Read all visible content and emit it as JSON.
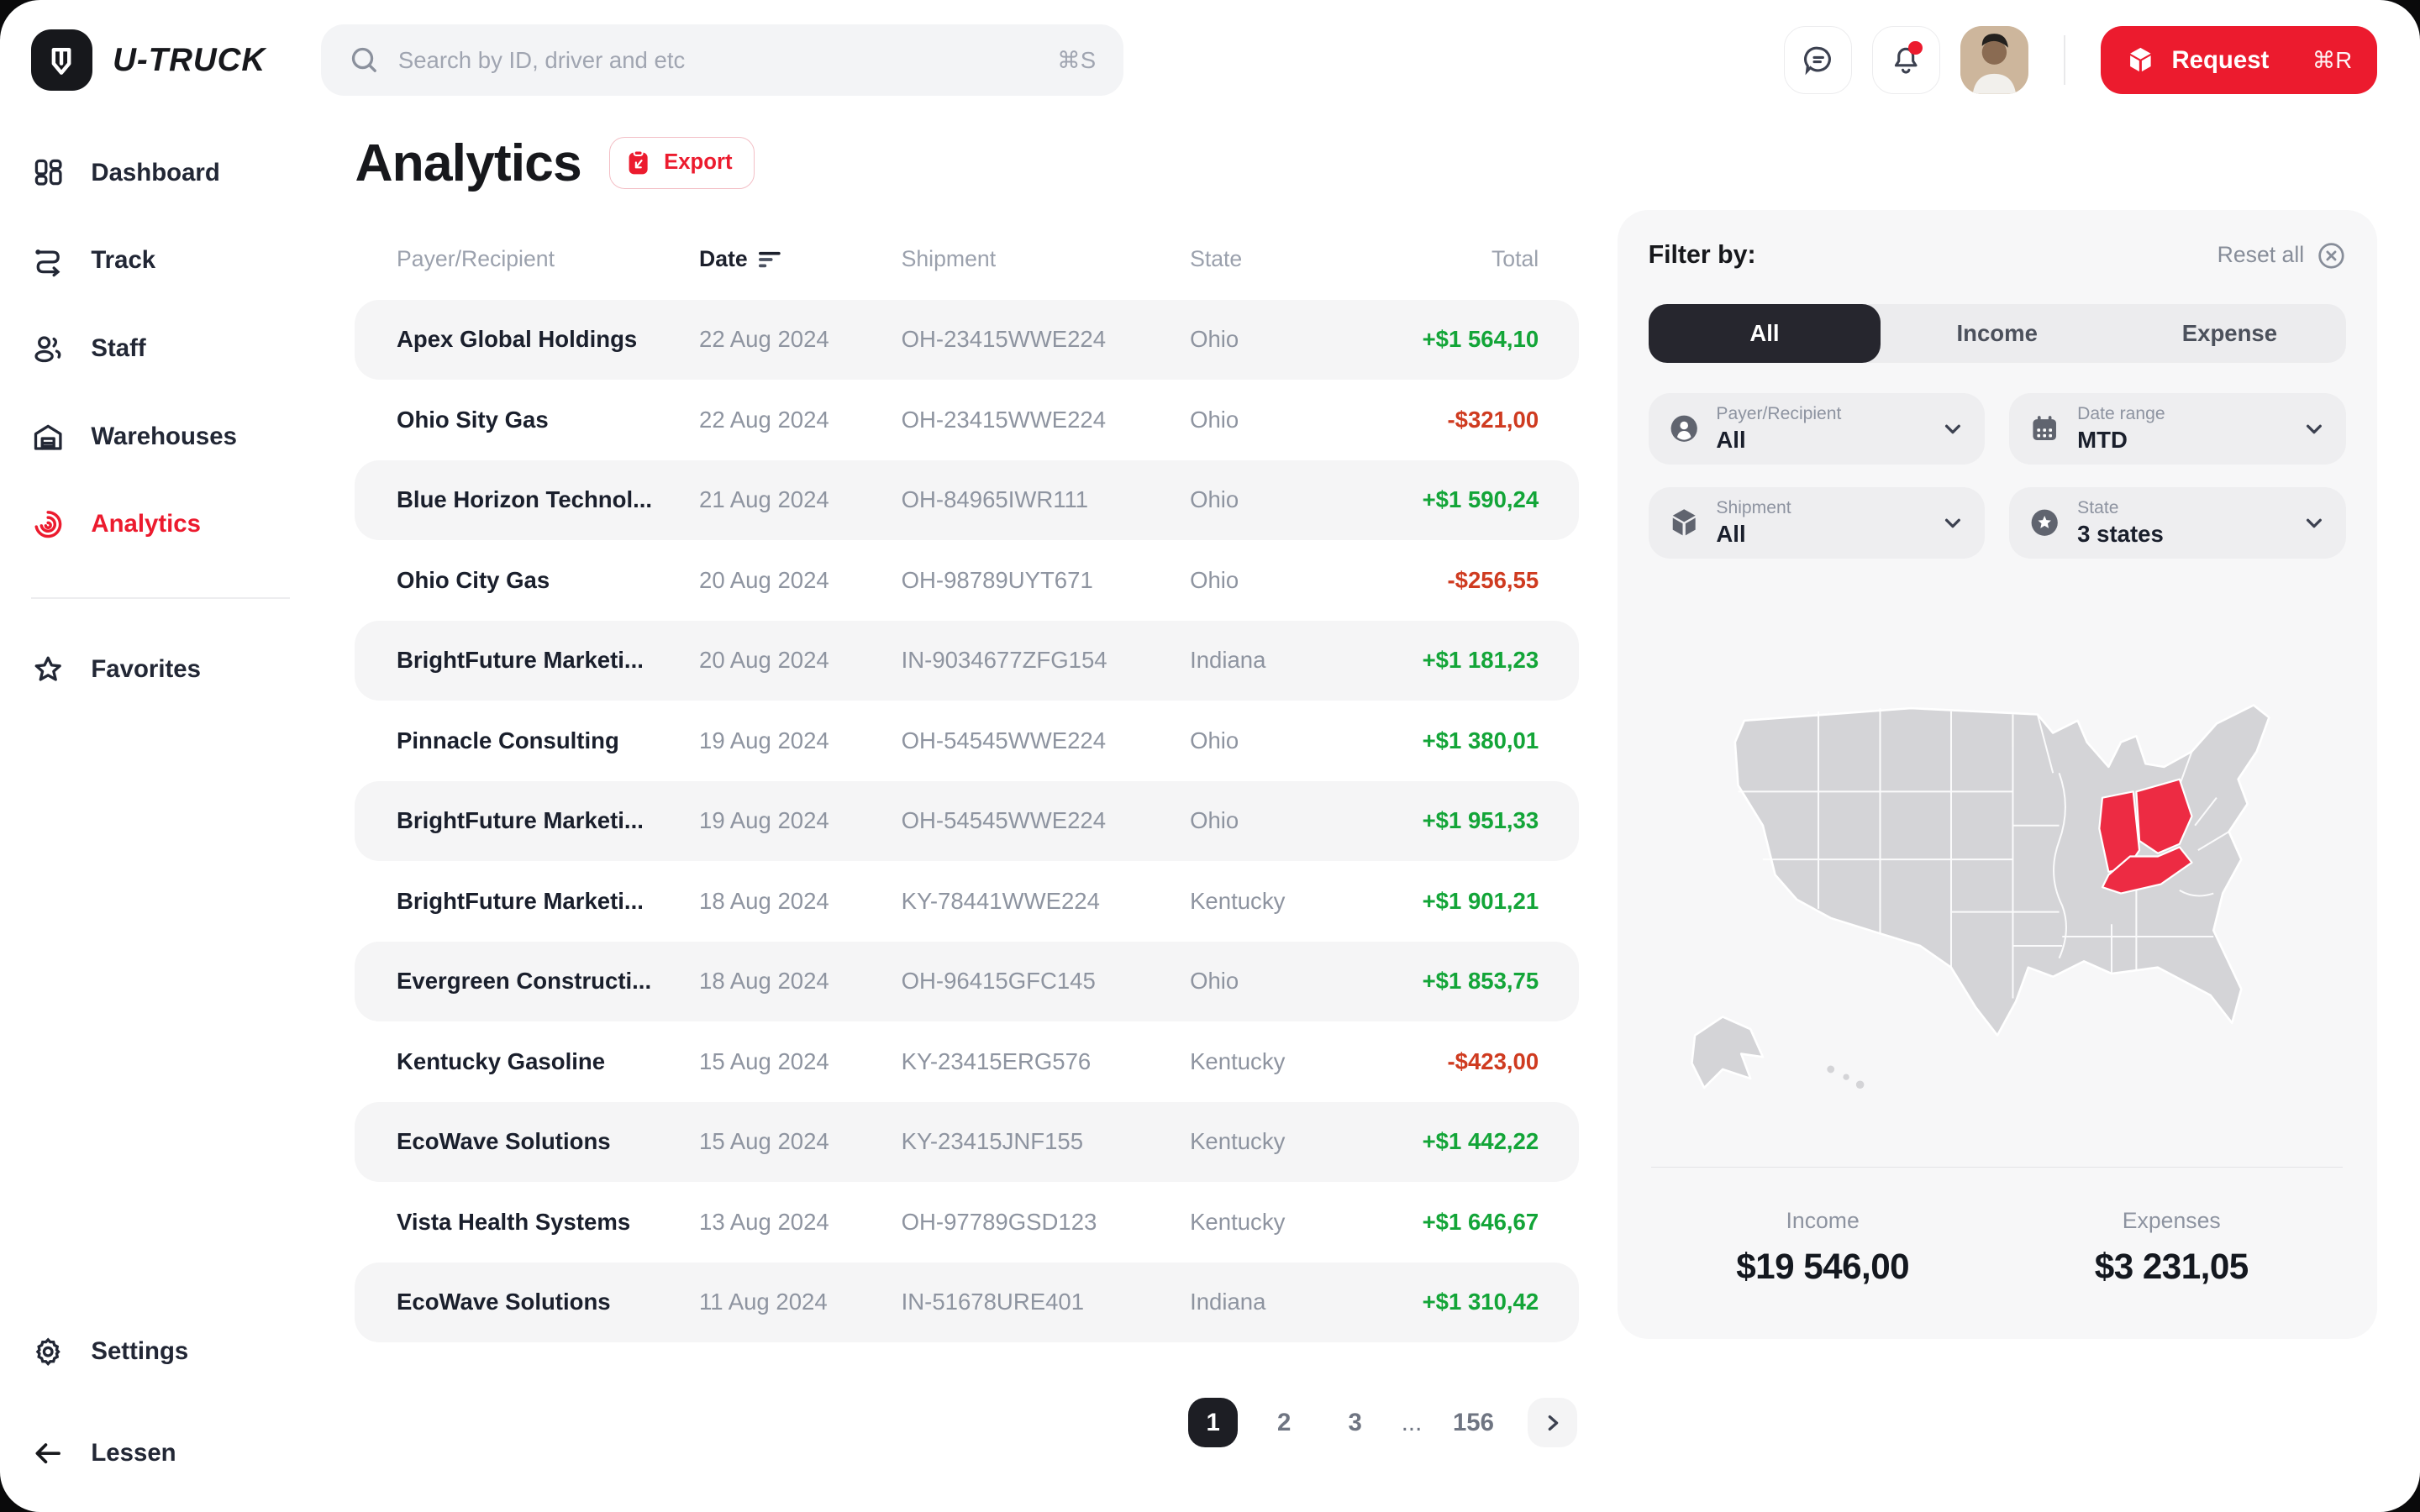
{
  "topbar": {
    "brand": "U-TRUCK",
    "search": {
      "placeholder": "Search by ID, driver and etc",
      "shortcut": "⌘S"
    },
    "request": {
      "label": "Request",
      "shortcut": "⌘R"
    },
    "icons": [
      "chat-icon",
      "bell-icon-with-badge",
      "avatar"
    ]
  },
  "sidebar": {
    "items": [
      {
        "label": "Dashboard",
        "icon": "dashboard-icon",
        "active": false
      },
      {
        "label": "Track",
        "icon": "track-icon",
        "active": false
      },
      {
        "label": "Staff",
        "icon": "staff-icon",
        "active": false
      },
      {
        "label": "Warehouses",
        "icon": "warehouse-icon",
        "active": false
      },
      {
        "label": "Analytics",
        "icon": "analytics-icon",
        "active": true
      },
      {
        "label": "Favorites",
        "icon": "star-icon",
        "active": false
      }
    ],
    "footer": [
      {
        "label": "Settings",
        "icon": "gear-icon"
      },
      {
        "label": "Lessen",
        "icon": "arrow-left-icon"
      }
    ]
  },
  "page": {
    "title": "Analytics",
    "export_label": "Export"
  },
  "table": {
    "columns": [
      "Payer/Recipient",
      "Date",
      "Shipment",
      "State",
      "Total"
    ],
    "sorted_column": "Date",
    "rows": [
      {
        "payer": "Apex Global Holdings",
        "date": "22 Aug 2024",
        "shipment": "OH-23415WWE224",
        "state": "Ohio",
        "total": "+$1 564,10",
        "positive": true
      },
      {
        "payer": "Ohio Sity Gas",
        "date": "22 Aug 2024",
        "shipment": "OH-23415WWE224",
        "state": "Ohio",
        "total": "-$321,00",
        "positive": false
      },
      {
        "payer": "Blue Horizon Technol...",
        "date": "21 Aug 2024",
        "shipment": "OH-84965IWR111",
        "state": "Ohio",
        "total": "+$1 590,24",
        "positive": true
      },
      {
        "payer": "Ohio City Gas",
        "date": "20 Aug 2024",
        "shipment": "OH-98789UYT671",
        "state": "Ohio",
        "total": "-$256,55",
        "positive": false
      },
      {
        "payer": "BrightFuture Marketi...",
        "date": "20 Aug 2024",
        "shipment": "IN-9034677ZFG154",
        "state": "Indiana",
        "total": "+$1 181,23",
        "positive": true
      },
      {
        "payer": "Pinnacle Consulting",
        "date": "19 Aug 2024",
        "shipment": "OH-54545WWE224",
        "state": "Ohio",
        "total": "+$1 380,01",
        "positive": true
      },
      {
        "payer": "BrightFuture Marketi...",
        "date": "19 Aug 2024",
        "shipment": "OH-54545WWE224",
        "state": "Ohio",
        "total": "+$1 951,33",
        "positive": true
      },
      {
        "payer": "BrightFuture Marketi...",
        "date": "18 Aug 2024",
        "shipment": "KY-78441WWE224",
        "state": "Kentucky",
        "total": "+$1 901,21",
        "positive": true
      },
      {
        "payer": "Evergreen Constructi...",
        "date": "18 Aug 2024",
        "shipment": "OH-96415GFC145",
        "state": "Ohio",
        "total": "+$1 853,75",
        "positive": true
      },
      {
        "payer": "Kentucky Gasoline",
        "date": "15 Aug 2024",
        "shipment": "KY-23415ERG576",
        "state": "Kentucky",
        "total": "-$423,00",
        "positive": false
      },
      {
        "payer": "EcoWave Solutions",
        "date": "15 Aug 2024",
        "shipment": "KY-23415JNF155",
        "state": "Kentucky",
        "total": "+$1 442,22",
        "positive": true
      },
      {
        "payer": "Vista Health Systems",
        "date": "13 Aug 2024",
        "shipment": "OH-97789GSD123",
        "state": "Kentucky",
        "total": "+$1 646,67",
        "positive": true
      },
      {
        "payer": "EcoWave Solutions",
        "date": "11 Aug 2024",
        "shipment": "IN-51678URE401",
        "state": "Indiana",
        "total": "+$1 310,42",
        "positive": true
      }
    ]
  },
  "pagination": {
    "pages": [
      "1",
      "2",
      "3",
      "...",
      "156"
    ],
    "active_index": 0
  },
  "filter": {
    "title": "Filter by:",
    "reset_label": "Reset all",
    "tabs": [
      "All",
      "Income",
      "Expense"
    ],
    "active_tab": "All",
    "dropdowns": [
      {
        "label": "Payer/Recipient",
        "value": "All",
        "icon": "person-circle-icon"
      },
      {
        "label": "Date range",
        "value": "MTD",
        "icon": "calendar-icon"
      },
      {
        "label": "Shipment",
        "value": "All",
        "icon": "cube-icon"
      },
      {
        "label": "State",
        "value": "3 states",
        "icon": "state-star-icon"
      }
    ],
    "map": {
      "highlighted_states": [
        "Indiana",
        "Ohio",
        "Kentucky"
      ]
    },
    "summary": {
      "income_label": "Income",
      "income_value": "$19 546,00",
      "expenses_label": "Expenses",
      "expenses_value": "$3 231,05"
    }
  },
  "colors": {
    "accent": "#ec1b2e",
    "positive": "#13a538",
    "negative": "#cf3b20",
    "dark": "#171c28",
    "gray": "#9aa0ac",
    "panel": "#f7f7f8",
    "tile": "#eeeef0",
    "shade": "#f5f5f6",
    "tab_active": "#26262e",
    "map_state": "#d4d4d7",
    "map_active": "#ed2b43"
  }
}
